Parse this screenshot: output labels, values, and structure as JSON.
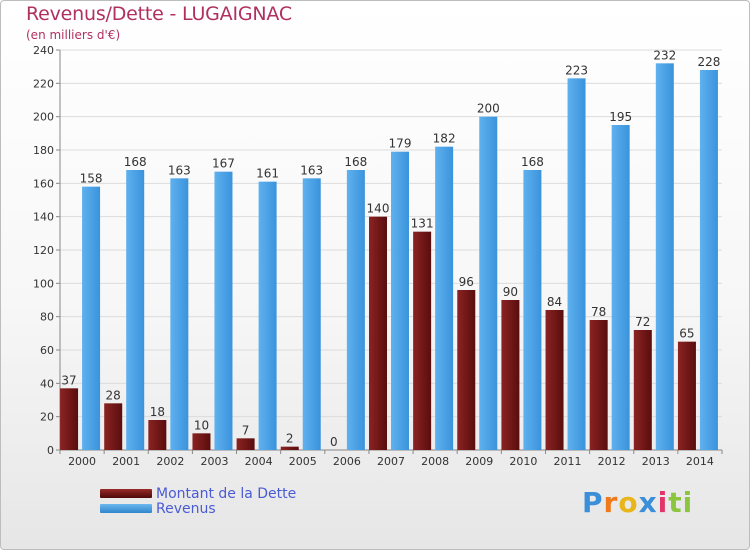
{
  "chart_data": {
    "type": "bar",
    "title": "Revenus/Dette - LUGAIGNAC",
    "subtitle": "(en milliers d'€)",
    "categories": [
      "2000",
      "2001",
      "2002",
      "2003",
      "2004",
      "2005",
      "2006",
      "2007",
      "2008",
      "2009",
      "2010",
      "2011",
      "2012",
      "2013",
      "2014"
    ],
    "series": [
      {
        "name": "Montant de la Dette",
        "color": "#7a1a1a",
        "values": [
          37,
          28,
          18,
          10,
          7,
          2,
          0,
          140,
          131,
          96,
          90,
          84,
          78,
          72,
          65
        ]
      },
      {
        "name": "Revenus",
        "color": "#4aa3e6",
        "values": [
          158,
          168,
          163,
          167,
          161,
          163,
          168,
          179,
          182,
          200,
          168,
          223,
          195,
          232,
          228
        ]
      }
    ],
    "ylim": [
      0,
      240
    ],
    "yticks": [
      0,
      20,
      40,
      60,
      80,
      100,
      120,
      140,
      160,
      180,
      200,
      220,
      240
    ],
    "grid": true,
    "legend_placement": "bottom-left"
  },
  "brand": {
    "letters": [
      "P",
      "r",
      "o",
      "x",
      "i",
      "t",
      "i"
    ],
    "colors": [
      "#3b8fd8",
      "#f07a1a",
      "#e8b51a",
      "#3b8fd8",
      "#e2336b",
      "#8cc63f",
      "#8cc63f"
    ]
  }
}
